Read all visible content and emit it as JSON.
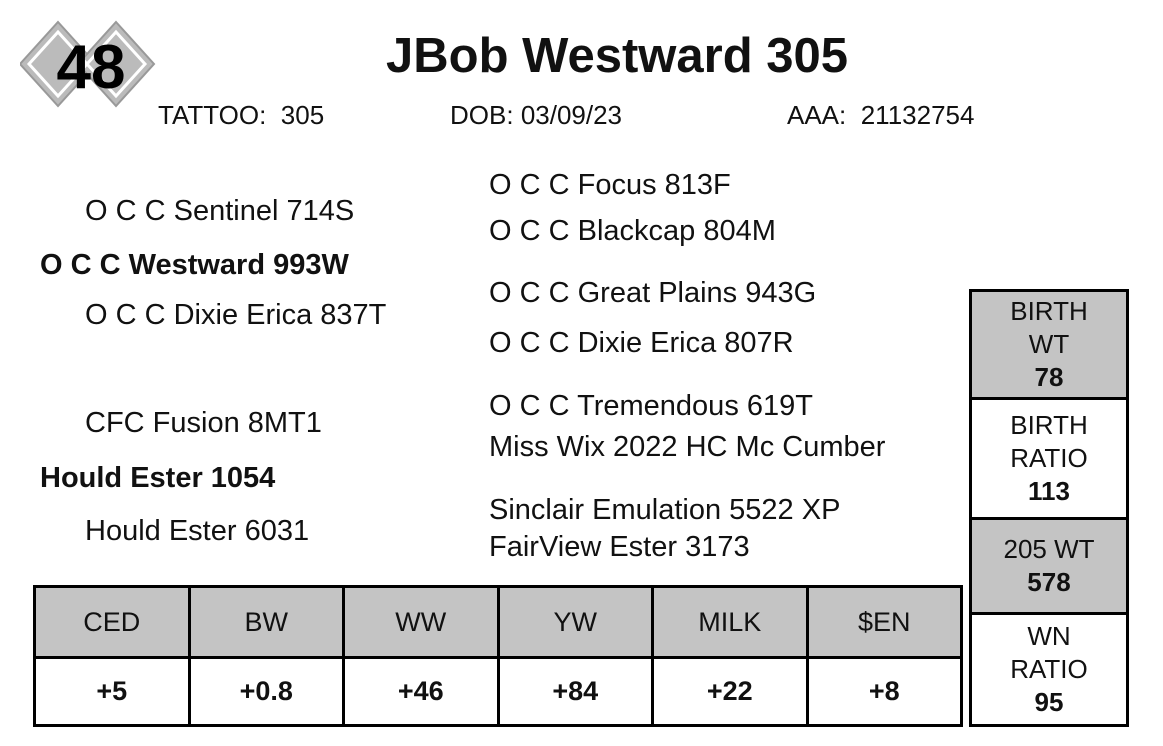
{
  "lot": "48",
  "name": "JBob Westward 305",
  "info": [
    {
      "label": "TATTOO:",
      "value": "305"
    },
    {
      "label": "DOB:",
      "value": "03/09/23"
    },
    {
      "label": "AAA:",
      "value": "21132754"
    }
  ],
  "pedigree": {
    "sire": "O C C Westward 993W",
    "sire_sire": "O C C Sentinel 714S",
    "sire_dam": "O C C Dixie Erica 837T",
    "dam": "Hould Ester 1054",
    "dam_sire": "CFC Fusion 8MT1",
    "dam_dam": "Hould Ester 6031",
    "sire_sire_sire": "O C C Focus 813F",
    "sire_sire_dam": "O C C Blackcap 804M",
    "sire_dam_sire": "O C C Great Plains 943G",
    "sire_dam_dam": "O C C Dixie Erica 807R",
    "dam_sire_sire": "O C C Tremendous 619T",
    "dam_sire_dam": "Miss Wix 2022 HC Mc Cumber",
    "dam_dam_sire": "Sinclair Emulation 5522 XP",
    "dam_dam_dam": "FairView Ester 3173"
  },
  "epds": {
    "headers": [
      "CED",
      "BW",
      "WW",
      "YW",
      "MILK",
      "$EN"
    ],
    "values": [
      "+5",
      "+0.8",
      "+46",
      "+84",
      "+22",
      "+8"
    ]
  },
  "stats": [
    {
      "label": "BIRTH WT",
      "value": "78"
    },
    {
      "label": "BIRTH RATIO",
      "value": "113"
    },
    {
      "label": "205 WT",
      "value": "578"
    },
    {
      "label": "WN RATIO",
      "value": "95"
    }
  ]
}
